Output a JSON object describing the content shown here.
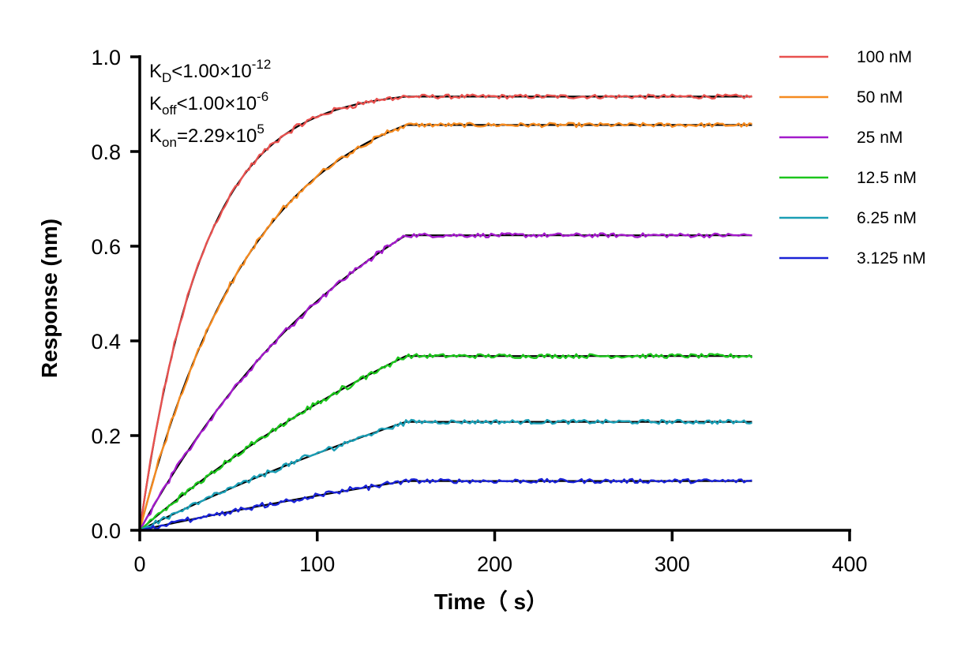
{
  "chart_data": {
    "type": "line",
    "xlabel": "Time（ s）",
    "ylabel": "Response (nm)",
    "xlim": [
      0,
      400
    ],
    "ylim": [
      0,
      1.0
    ],
    "xticks": [
      0,
      100,
      200,
      300,
      400
    ],
    "xtick_labels": [
      "0",
      "100",
      "200",
      "300",
      "400"
    ],
    "yticks": [
      0,
      0.2,
      0.4,
      0.6,
      0.8,
      1.0
    ],
    "ytick_labels": [
      "0.0",
      "0.2",
      "0.4",
      "0.6",
      "0.8",
      "1.0"
    ],
    "grid": false,
    "legend_position": "top-right",
    "association_end": 150,
    "x_end": 345,
    "kinetics": {
      "kd": {
        "base": "K",
        "sub": "D",
        "rel": "<",
        "mantissa": "1.00×10",
        "exp": "-12"
      },
      "koff": {
        "base": "K",
        "sub": "off",
        "rel": "<",
        "mantissa": "1.00×10",
        "exp": "-6"
      },
      "kon": {
        "base": "K",
        "sub": "on",
        "rel": "=",
        "mantissa": "2.29×10",
        "exp": "5"
      }
    },
    "fit_color": "#000000",
    "series": [
      {
        "name": "100 nM",
        "color": "#E8514F",
        "plateau": 0.916,
        "rate": 0.028
      },
      {
        "name": "50 nM",
        "color": "#F58A1F",
        "plateau": 0.856,
        "rate": 0.0155
      },
      {
        "name": "25 nM",
        "color": "#A31ACB",
        "plateau": 0.623,
        "rate": 0.0072
      },
      {
        "name": "12.5 nM",
        "color": "#1CC51C",
        "plateau": 0.368,
        "rate": 0.0038
      },
      {
        "name": "6.25 nM",
        "color": "#1A9EB5",
        "plateau": 0.229,
        "rate": 0.0026
      },
      {
        "name": "3.125 nM",
        "color": "#1A22D6",
        "plateau": 0.104,
        "rate": 0.0022
      }
    ]
  }
}
